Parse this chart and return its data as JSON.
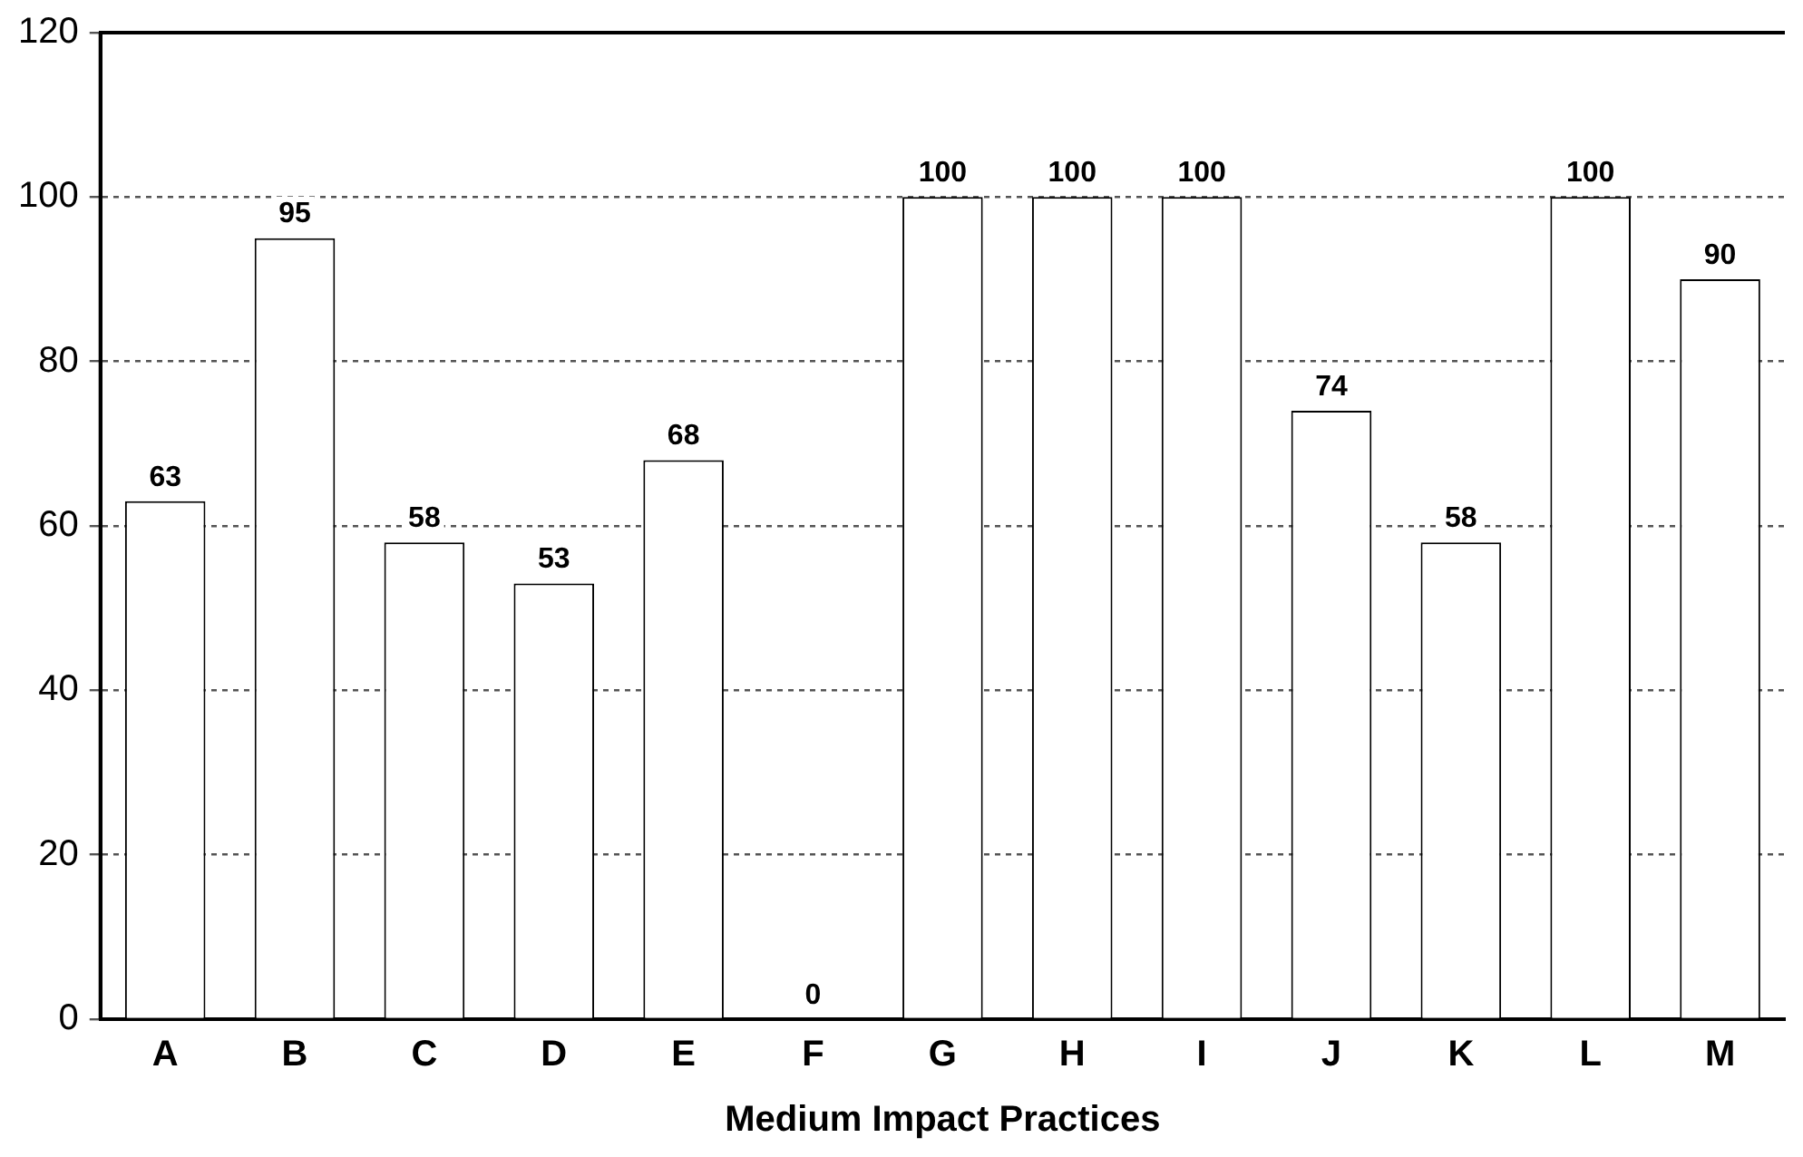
{
  "chart_data": {
    "type": "bar",
    "xlabel": "Medium Impact Practices",
    "categories": [
      "A",
      "B",
      "C",
      "D",
      "E",
      "F",
      "G",
      "H",
      "I",
      "J",
      "K",
      "L",
      "M"
    ],
    "values": [
      63,
      95,
      58,
      53,
      68,
      0,
      100,
      100,
      100,
      74,
      58,
      100,
      90
    ],
    "color": "#ffffff",
    "data_labels": true,
    "grid": "y",
    "legend": false,
    "ylim": [
      0,
      120
    ],
    "yticks": [
      0,
      20,
      40,
      60,
      80,
      100,
      120
    ]
  }
}
